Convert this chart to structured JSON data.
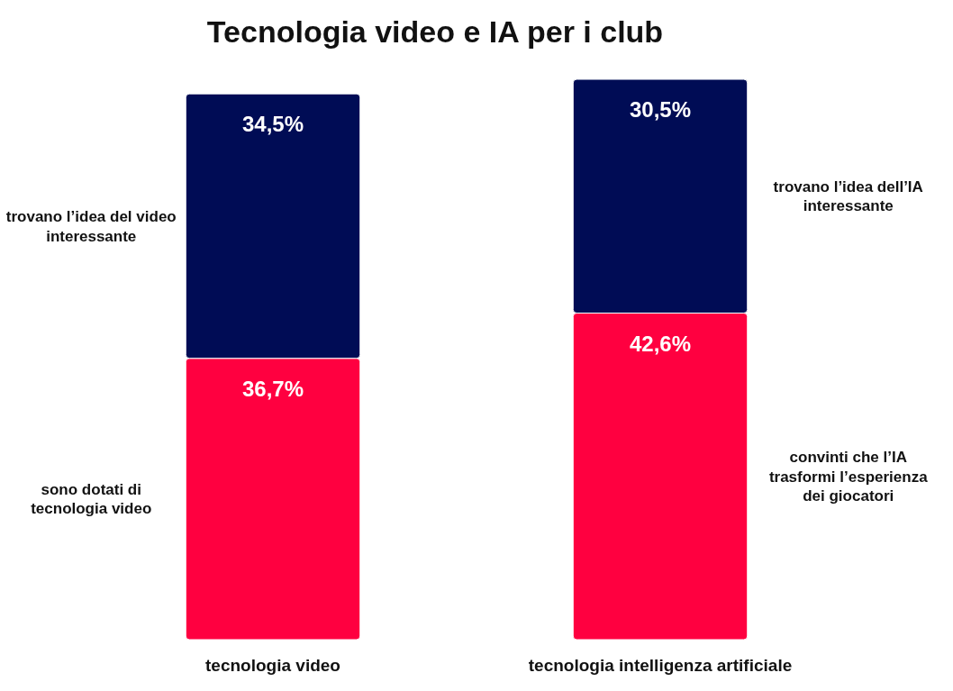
{
  "chart_data": {
    "type": "bar",
    "title": "Tecnologia video e IA per i club",
    "categories": [
      "tecnologia video",
      "tecnologia intelligenza artificiale"
    ],
    "stacked": true,
    "data_labels": true,
    "series": [
      {
        "color": "#ff0040",
        "values": [
          36.7,
          42.6
        ],
        "value_labels": [
          "36,7%",
          "42,6%"
        ]
      },
      {
        "color": "#000c55",
        "values": [
          34.5,
          30.5
        ],
        "value_labels": [
          "34,5%",
          "30,5%"
        ]
      }
    ],
    "annotations": [
      "trovano l’idea del video interessante",
      "sono dotati di tecnologia video",
      "trovano l’idea dell’IA interessante",
      "convinti che l’IA trasformi l’esperienza dei giocatori"
    ]
  }
}
